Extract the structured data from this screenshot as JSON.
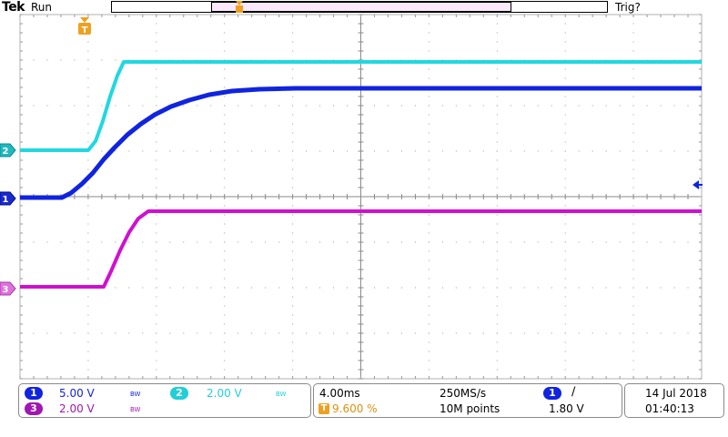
{
  "header": {
    "brand": "Tek",
    "run_state": "Run",
    "trigger_state": "Trig?",
    "record_window_color": "#fbe8fb"
  },
  "markers": {
    "trigger": "T",
    "ch1": "1",
    "ch2": "2",
    "ch3": "3"
  },
  "colors": {
    "ch1": "#1024e0",
    "ch2": "#20d8e0",
    "ch3": "#d010d0",
    "trigger": "#f0a020",
    "ch2_badge": "#22cfd6",
    "ch3_badge": "#a018b0",
    "graticule_dot": "#9a9a9a"
  },
  "channels": [
    {
      "id": "1",
      "scale": "5.00 V",
      "bw": "BW",
      "color": "#1024e0"
    },
    {
      "id": "2",
      "scale": "2.00 V",
      "bw": "BW",
      "color": "#22cfd6"
    },
    {
      "id": "3",
      "scale": "2.00 V",
      "bw": "BW",
      "color": "#a018b0"
    }
  ],
  "timebase": {
    "horizontal_scale": "4.00ms",
    "sample_rate": "250MS/s",
    "trigger_position": "9.600 %",
    "record_length": "10M points",
    "trigger_source": "1",
    "trigger_level": "1.80 V",
    "trigger_slope_icon": "rising-edge-icon"
  },
  "datetime": {
    "date": "14 Jul  2018",
    "time": "01:40:13"
  }
}
